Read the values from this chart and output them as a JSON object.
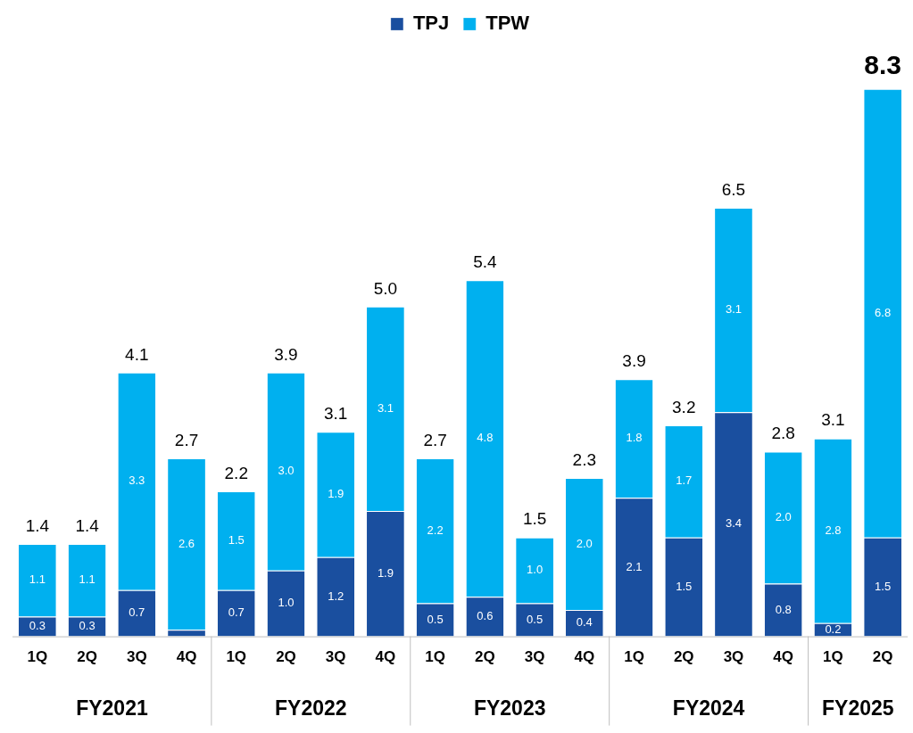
{
  "chart_data": {
    "type": "bar",
    "stacked": true,
    "legend": "top",
    "categories": [
      "1Q",
      "2Q",
      "3Q",
      "4Q",
      "1Q",
      "2Q",
      "3Q",
      "4Q",
      "1Q",
      "2Q",
      "3Q",
      "4Q",
      "1Q",
      "2Q",
      "3Q",
      "4Q",
      "1Q",
      "2Q"
    ],
    "series": [
      {
        "name": "TPJ",
        "color": "#1a4f9f",
        "values": [
          0.3,
          0.3,
          0.7,
          0.1,
          0.7,
          1.0,
          1.2,
          1.9,
          0.5,
          0.6,
          0.5,
          0.4,
          2.1,
          1.5,
          3.4,
          0.8,
          0.2,
          1.5
        ],
        "value_labels": [
          "0.3",
          "0.3",
          "0.7",
          null,
          "0.7",
          "1.0",
          "1.2",
          "1.9",
          "0.5",
          "0.6",
          "0.5",
          "0.4",
          "2.1",
          "1.5",
          "3.4",
          "0.8",
          "0.2",
          "1.5"
        ]
      },
      {
        "name": "TPW",
        "color": "#00b0ef",
        "values": [
          1.1,
          1.1,
          3.3,
          2.6,
          1.5,
          3.0,
          1.9,
          3.1,
          2.2,
          4.8,
          1.0,
          2.0,
          1.8,
          1.7,
          3.1,
          2.0,
          2.8,
          6.8
        ],
        "value_labels": [
          "1.1",
          "1.1",
          "3.3",
          "2.6",
          "1.5",
          "3.0",
          "1.9",
          "3.1",
          "2.2",
          "4.8",
          "1.0",
          "2.0",
          "1.8",
          "1.7",
          "3.1",
          "2.0",
          "2.8",
          "6.8"
        ]
      }
    ],
    "totals": [
      "1.4",
      "1.4",
      "4.1",
      "2.7",
      "2.2",
      "3.9",
      "3.1",
      "5.0",
      "2.7",
      "5.4",
      "1.5",
      "2.3",
      "3.9",
      "3.2",
      "6.5",
      "2.8",
      "3.1",
      "8.3"
    ],
    "annotations": [
      "FY2021",
      "FY2022",
      "FY2023",
      "FY2024",
      "FY2025"
    ]
  }
}
